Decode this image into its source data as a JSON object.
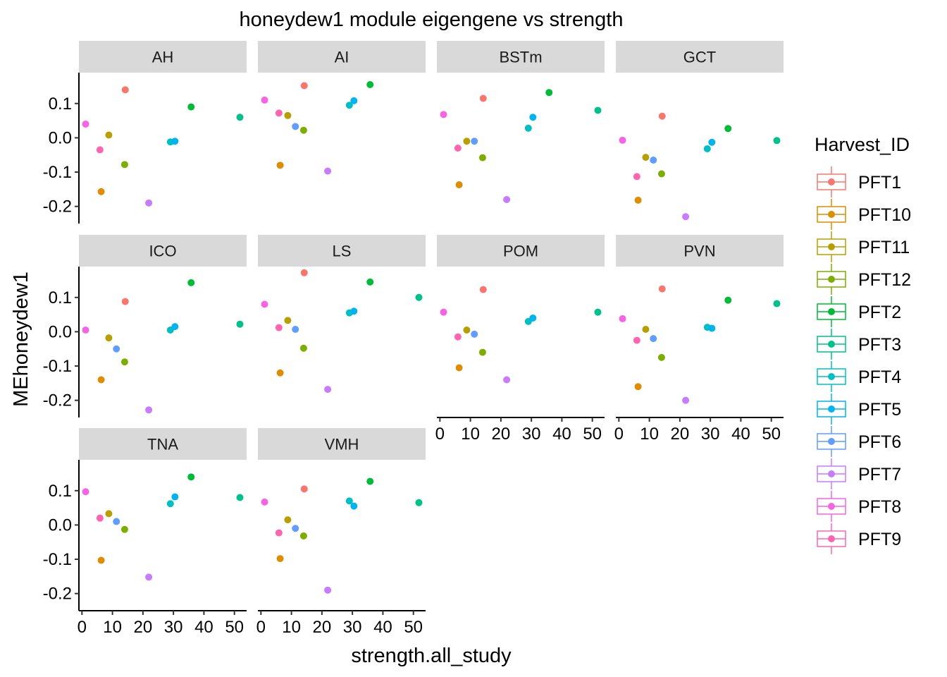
{
  "chart_data": {
    "type": "scatter",
    "title": "honeydew1 module eigengene vs strength",
    "xlabel": "strength.all_study",
    "ylabel": "MEhoneydew1",
    "xlim": [
      -1,
      54
    ],
    "ylim": [
      -0.25,
      0.19
    ],
    "xticks": [
      "0",
      "10",
      "20",
      "30",
      "40",
      "50"
    ],
    "xtick_values": [
      0,
      10,
      20,
      30,
      40,
      50
    ],
    "yticks": [
      "-0.2",
      "-0.1",
      "0.0",
      "0.1"
    ],
    "ytick_values": [
      -0.2,
      -0.1,
      0.0,
      0.1
    ],
    "grid": false,
    "legend": {
      "title": "Harvest_ID",
      "placement": "right",
      "entries": [
        "PFT1",
        "PFT10",
        "PFT11",
        "PFT12",
        "PFT2",
        "PFT3",
        "PFT4",
        "PFT5",
        "PFT6",
        "PFT7",
        "PFT8",
        "PFT9"
      ]
    },
    "colors": {
      "PFT1": "#F8766D",
      "PFT10": "#DE8C00",
      "PFT11": "#B79F00",
      "PFT12": "#7CAE00",
      "PFT2": "#00BA38",
      "PFT3": "#00C08B",
      "PFT4": "#00BFC4",
      "PFT5": "#00B4F0",
      "PFT6": "#619CFF",
      "PFT7": "#C77CFF",
      "PFT8": "#F564E3",
      "PFT9": "#FF64B0"
    },
    "strength": {
      "PFT1": 14.2,
      "PFT10": 6.3,
      "PFT11": 8.8,
      "PFT12": 14.0,
      "PFT2": 35.8,
      "PFT3": 51.8,
      "PFT4": 29.0,
      "PFT5": 30.5,
      "PFT6": 11.3,
      "PFT7": 21.9,
      "PFT8": 1.2,
      "PFT9": 5.9
    },
    "panels": [
      {
        "name": "AH",
        "values": {
          "PFT1": 0.14,
          "PFT10": -0.157,
          "PFT11": 0.008,
          "PFT12": -0.078,
          "PFT2": 0.09,
          "PFT3": 0.06,
          "PFT4": -0.012,
          "PFT5": -0.01,
          "PFT6": null,
          "PFT7": -0.19,
          "PFT8": 0.04,
          "PFT9": -0.035
        }
      },
      {
        "name": "AI",
        "values": {
          "PFT1": 0.152,
          "PFT10": -0.08,
          "PFT11": 0.065,
          "PFT12": 0.022,
          "PFT2": 0.155,
          "PFT3": null,
          "PFT4": 0.095,
          "PFT5": 0.108,
          "PFT6": 0.033,
          "PFT7": -0.097,
          "PFT8": 0.11,
          "PFT9": 0.072
        }
      },
      {
        "name": "BSTm",
        "values": {
          "PFT1": 0.115,
          "PFT10": -0.137,
          "PFT11": -0.01,
          "PFT12": -0.058,
          "PFT2": 0.132,
          "PFT3": 0.08,
          "PFT4": 0.028,
          "PFT5": 0.06,
          "PFT6": -0.01,
          "PFT7": -0.18,
          "PFT8": 0.068,
          "PFT9": -0.03
        }
      },
      {
        "name": "GCT",
        "values": {
          "PFT1": 0.063,
          "PFT10": -0.182,
          "PFT11": -0.057,
          "PFT12": -0.105,
          "PFT2": 0.027,
          "PFT3": -0.008,
          "PFT4": -0.032,
          "PFT5": -0.013,
          "PFT6": -0.065,
          "PFT7": -0.23,
          "PFT8": -0.007,
          "PFT9": -0.113
        }
      },
      {
        "name": "ICO",
        "values": {
          "PFT1": 0.088,
          "PFT10": -0.14,
          "PFT11": -0.018,
          "PFT12": -0.088,
          "PFT2": 0.143,
          "PFT3": 0.022,
          "PFT4": 0.005,
          "PFT5": 0.015,
          "PFT6": -0.05,
          "PFT7": -0.228,
          "PFT8": 0.005,
          "PFT9": null
        }
      },
      {
        "name": "LS",
        "values": {
          "PFT1": 0.172,
          "PFT10": -0.12,
          "PFT11": 0.033,
          "PFT12": -0.048,
          "PFT2": 0.145,
          "PFT3": 0.1,
          "PFT4": 0.055,
          "PFT5": 0.06,
          "PFT6": 0.007,
          "PFT7": -0.168,
          "PFT8": 0.08,
          "PFT9": 0.012
        }
      },
      {
        "name": "POM",
        "values": {
          "PFT1": 0.123,
          "PFT10": -0.105,
          "PFT11": 0.005,
          "PFT12": -0.06,
          "PFT2": null,
          "PFT3": 0.057,
          "PFT4": 0.03,
          "PFT5": 0.04,
          "PFT6": -0.007,
          "PFT7": -0.14,
          "PFT8": 0.057,
          "PFT9": -0.015
        }
      },
      {
        "name": "PVN",
        "values": {
          "PFT1": 0.125,
          "PFT10": -0.16,
          "PFT11": 0.007,
          "PFT12": -0.075,
          "PFT2": 0.092,
          "PFT3": 0.082,
          "PFT4": 0.013,
          "PFT5": 0.01,
          "PFT6": -0.02,
          "PFT7": -0.2,
          "PFT8": 0.038,
          "PFT9": -0.025
        }
      },
      {
        "name": "TNA",
        "values": {
          "PFT1": null,
          "PFT10": -0.103,
          "PFT11": 0.033,
          "PFT12": -0.013,
          "PFT2": 0.14,
          "PFT3": 0.08,
          "PFT4": 0.062,
          "PFT5": 0.082,
          "PFT6": 0.01,
          "PFT7": -0.152,
          "PFT8": 0.097,
          "PFT9": 0.02
        }
      },
      {
        "name": "VMH",
        "values": {
          "PFT1": 0.105,
          "PFT10": -0.098,
          "PFT11": 0.015,
          "PFT12": -0.032,
          "PFT2": 0.127,
          "PFT3": 0.065,
          "PFT4": 0.07,
          "PFT5": 0.055,
          "PFT6": -0.01,
          "PFT7": -0.19,
          "PFT8": 0.067,
          "PFT9": -0.023
        }
      }
    ]
  }
}
